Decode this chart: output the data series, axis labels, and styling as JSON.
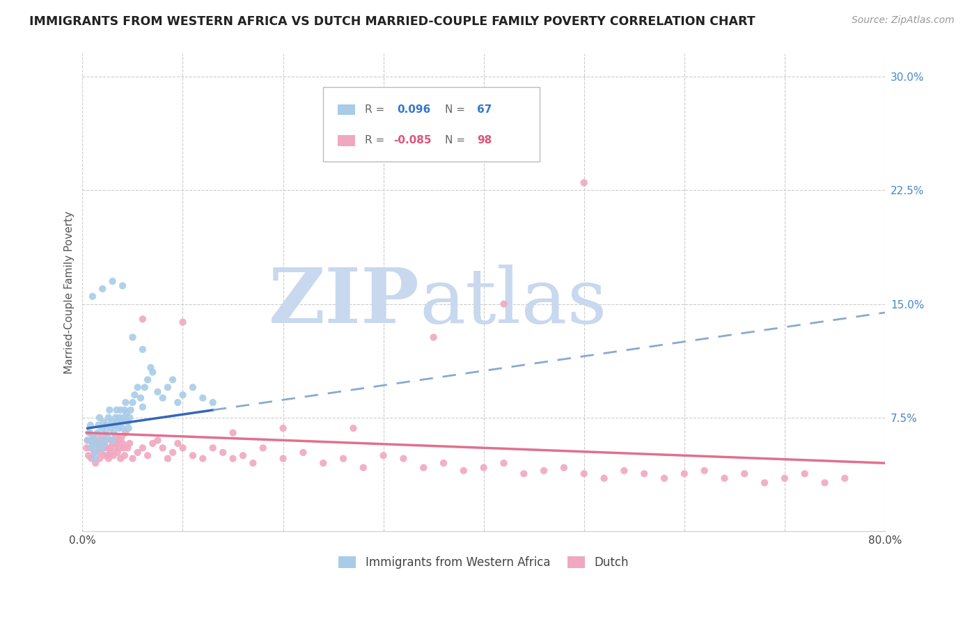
{
  "title": "IMMIGRANTS FROM WESTERN AFRICA VS DUTCH MARRIED-COUPLE FAMILY POVERTY CORRELATION CHART",
  "source": "Source: ZipAtlas.com",
  "ylabel": "Married-Couple Family Poverty",
  "blue_R": 0.096,
  "blue_N": 67,
  "pink_R": -0.085,
  "pink_N": 98,
  "blue_color": "#a8cce8",
  "pink_color": "#f0a8c0",
  "blue_line_color": "#3366bb",
  "pink_line_color": "#e07090",
  "blue_dash_color": "#88aad0",
  "watermark_color": "#c8d8ee",
  "blue_scatter_x": [
    0.005,
    0.007,
    0.008,
    0.009,
    0.01,
    0.011,
    0.012,
    0.013,
    0.014,
    0.015,
    0.016,
    0.017,
    0.018,
    0.019,
    0.02,
    0.021,
    0.022,
    0.023,
    0.024,
    0.025,
    0.026,
    0.027,
    0.028,
    0.029,
    0.03,
    0.031,
    0.032,
    0.033,
    0.034,
    0.035,
    0.036,
    0.037,
    0.038,
    0.039,
    0.04,
    0.041,
    0.042,
    0.043,
    0.044,
    0.045,
    0.046,
    0.047,
    0.048,
    0.05,
    0.052,
    0.055,
    0.058,
    0.06,
    0.062,
    0.065,
    0.068,
    0.07,
    0.075,
    0.08,
    0.085,
    0.09,
    0.095,
    0.1,
    0.11,
    0.12,
    0.13,
    0.01,
    0.02,
    0.03,
    0.04,
    0.05,
    0.06
  ],
  "blue_scatter_y": [
    0.06,
    0.065,
    0.07,
    0.055,
    0.058,
    0.062,
    0.048,
    0.052,
    0.057,
    0.065,
    0.07,
    0.075,
    0.06,
    0.055,
    0.068,
    0.072,
    0.058,
    0.065,
    0.07,
    0.062,
    0.075,
    0.08,
    0.068,
    0.072,
    0.06,
    0.065,
    0.07,
    0.075,
    0.08,
    0.072,
    0.068,
    0.075,
    0.08,
    0.072,
    0.068,
    0.075,
    0.08,
    0.085,
    0.078,
    0.072,
    0.068,
    0.075,
    0.08,
    0.085,
    0.09,
    0.095,
    0.088,
    0.082,
    0.095,
    0.1,
    0.108,
    0.105,
    0.092,
    0.088,
    0.095,
    0.1,
    0.085,
    0.09,
    0.095,
    0.088,
    0.085,
    0.155,
    0.16,
    0.165,
    0.162,
    0.128,
    0.12
  ],
  "pink_scatter_x": [
    0.004,
    0.005,
    0.006,
    0.007,
    0.008,
    0.009,
    0.01,
    0.011,
    0.012,
    0.013,
    0.014,
    0.015,
    0.016,
    0.017,
    0.018,
    0.019,
    0.02,
    0.021,
    0.022,
    0.023,
    0.024,
    0.025,
    0.026,
    0.027,
    0.028,
    0.029,
    0.03,
    0.031,
    0.032,
    0.033,
    0.034,
    0.035,
    0.036,
    0.037,
    0.038,
    0.039,
    0.04,
    0.041,
    0.042,
    0.043,
    0.045,
    0.047,
    0.05,
    0.055,
    0.06,
    0.065,
    0.07,
    0.075,
    0.08,
    0.085,
    0.09,
    0.095,
    0.1,
    0.11,
    0.12,
    0.13,
    0.14,
    0.15,
    0.16,
    0.17,
    0.18,
    0.2,
    0.22,
    0.24,
    0.26,
    0.28,
    0.3,
    0.32,
    0.34,
    0.36,
    0.38,
    0.4,
    0.42,
    0.44,
    0.46,
    0.48,
    0.5,
    0.52,
    0.54,
    0.56,
    0.58,
    0.6,
    0.62,
    0.64,
    0.66,
    0.68,
    0.7,
    0.72,
    0.74,
    0.76,
    0.5,
    0.42,
    0.35,
    0.27,
    0.2,
    0.15,
    0.1,
    0.06
  ],
  "pink_scatter_y": [
    0.055,
    0.06,
    0.05,
    0.065,
    0.055,
    0.048,
    0.058,
    0.062,
    0.052,
    0.045,
    0.058,
    0.06,
    0.055,
    0.048,
    0.052,
    0.062,
    0.058,
    0.055,
    0.05,
    0.06,
    0.055,
    0.05,
    0.048,
    0.055,
    0.052,
    0.06,
    0.058,
    0.05,
    0.055,
    0.062,
    0.058,
    0.052,
    0.06,
    0.055,
    0.048,
    0.062,
    0.058,
    0.055,
    0.05,
    0.065,
    0.055,
    0.058,
    0.048,
    0.052,
    0.055,
    0.05,
    0.058,
    0.06,
    0.055,
    0.048,
    0.052,
    0.058,
    0.055,
    0.05,
    0.048,
    0.055,
    0.052,
    0.048,
    0.05,
    0.045,
    0.055,
    0.048,
    0.052,
    0.045,
    0.048,
    0.042,
    0.05,
    0.048,
    0.042,
    0.045,
    0.04,
    0.042,
    0.045,
    0.038,
    0.04,
    0.042,
    0.038,
    0.035,
    0.04,
    0.038,
    0.035,
    0.038,
    0.04,
    0.035,
    0.038,
    0.032,
    0.035,
    0.038,
    0.032,
    0.035,
    0.23,
    0.15,
    0.128,
    0.068,
    0.068,
    0.065,
    0.138,
    0.14
  ]
}
